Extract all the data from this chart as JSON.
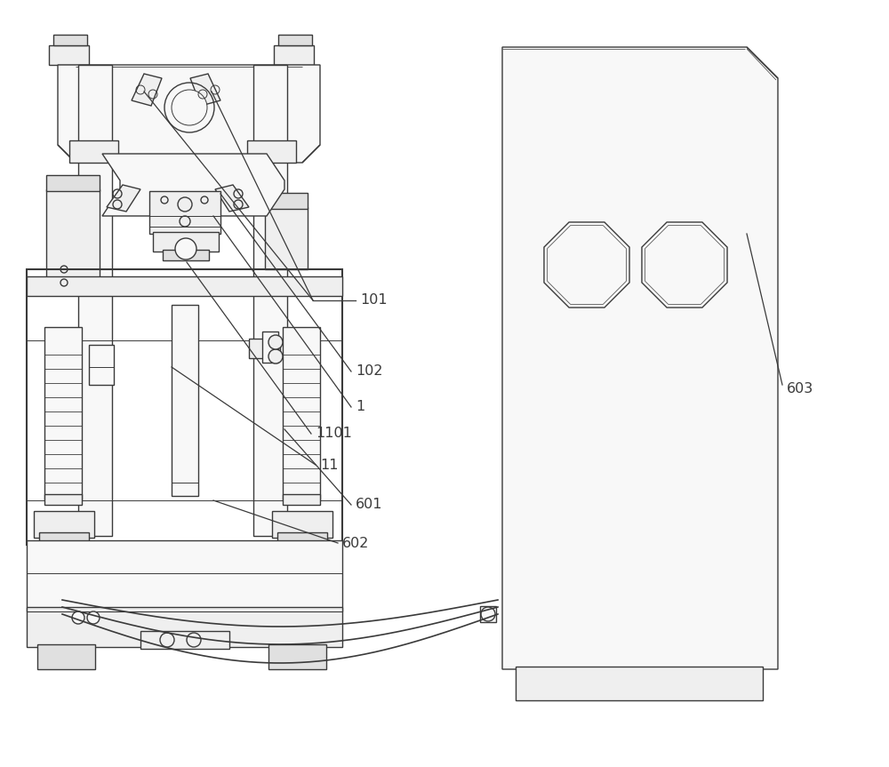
{
  "bg_color": "#ffffff",
  "line_color": "#3a3a3a",
  "figsize": [
    10.0,
    8.63
  ],
  "lw": 1.0,
  "lw_thick": 1.5,
  "fill_light": "#f8f8f8",
  "fill_mid": "#efefef",
  "fill_dark": "#e0e0e0"
}
